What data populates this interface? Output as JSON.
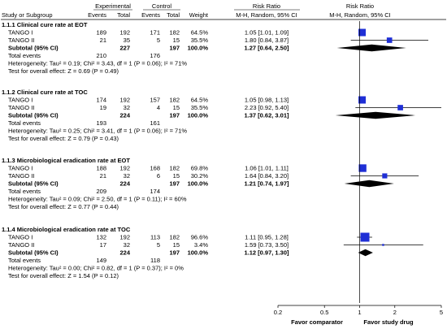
{
  "headers": {
    "experimental": "Experimental",
    "control": "Control",
    "risk_ratio": "Risk Ratio",
    "study": "Study or Subgroup",
    "events_e": "Events",
    "total_e": "Total",
    "events_c": "Events",
    "total_c": "Total",
    "weight": "Weight",
    "method_text": "M-H, Random, 95% CI",
    "method_plot": "M-H, Random, 95% CI"
  },
  "colors": {
    "study_box": "#1f2fd6",
    "diamond": "#000000",
    "rule": "#000000"
  },
  "footer": {
    "favor_left": "Favor comparator",
    "favor_right": "Favor study drug"
  },
  "chart_data": {
    "type": "forest",
    "scale": "log",
    "xlim": [
      0.2,
      5
    ],
    "reference_line": 1,
    "ticks": [
      0.2,
      0.5,
      1,
      2,
      5
    ],
    "tick_labels": [
      "0.2",
      "0.5",
      "1",
      "2",
      "5"
    ],
    "subgroups": [
      {
        "title": "1.1.1 Clinical cure rate at EOT",
        "studies": [
          {
            "name": "TANGO I",
            "events_e": "189",
            "total_e": "192",
            "events_c": "171",
            "total_c": "182",
            "weight": "64.5%",
            "ci_text": "1.05 [1.01, 1.09]",
            "rr": 1.05,
            "lo": 1.01,
            "hi": 1.09,
            "w": 64.5
          },
          {
            "name": "TANGO II",
            "events_e": "21",
            "total_e": "35",
            "events_c": "5",
            "total_c": "15",
            "weight": "35.5%",
            "ci_text": "1.80 [0.84, 3.87]",
            "rr": 1.8,
            "lo": 0.84,
            "hi": 3.87,
            "w": 35.5
          }
        ],
        "subtotal": {
          "label": "Subtotal (95% CI)",
          "total_e": "227",
          "total_c": "197",
          "weight": "100.0%",
          "ci_text": "1.27 [0.64, 2.50]",
          "rr": 1.27,
          "lo": 0.64,
          "hi": 2.5
        },
        "total_events": {
          "label": "Total events",
          "e": "210",
          "c": "176"
        },
        "heterogeneity": "Heterogeneity: Tau² = 0.19; Chi² = 3.43, df = 1 (P = 0.06); I² = 71%",
        "overall": "Test for overall effect: Z = 0.69 (P = 0.49)"
      },
      {
        "title": "1.1.2 Clinical cure rate at TOC",
        "studies": [
          {
            "name": "TANGO I",
            "events_e": "174",
            "total_e": "192",
            "events_c": "157",
            "total_c": "182",
            "weight": "64.5%",
            "ci_text": "1.05 [0.98, 1.13]",
            "rr": 1.05,
            "lo": 0.98,
            "hi": 1.13,
            "w": 64.5
          },
          {
            "name": "TANGO II",
            "events_e": "19",
            "total_e": "32",
            "events_c": "4",
            "total_c": "15",
            "weight": "35.5%",
            "ci_text": "2.23 [0.92, 5.40]",
            "rr": 2.23,
            "lo": 0.92,
            "hi": 5.4,
            "w": 35.5
          }
        ],
        "subtotal": {
          "label": "Subtotal (95% CI)",
          "total_e": "224",
          "total_c": "197",
          "weight": "100.0%",
          "ci_text": "1.37 [0.62, 3.01]",
          "rr": 1.37,
          "lo": 0.62,
          "hi": 3.01
        },
        "total_events": {
          "label": "Total events",
          "e": "193",
          "c": "161"
        },
        "heterogeneity": "Heterogeneity: Tau² = 0.25; Chi² = 3.41, df = 1 (P = 0.06); I² = 71%",
        "overall": "Test for overall effect: Z = 0.79 (P = 0.43)"
      },
      {
        "title": "1.1.3 Microbiological eradication rate at EOT",
        "studies": [
          {
            "name": "TANGO I",
            "events_e": "188",
            "total_e": "192",
            "events_c": "168",
            "total_c": "182",
            "weight": "69.8%",
            "ci_text": "1.06 [1.01, 1.11]",
            "rr": 1.06,
            "lo": 1.01,
            "hi": 1.11,
            "w": 69.8
          },
          {
            "name": "TANGO II",
            "events_e": "21",
            "total_e": "32",
            "events_c": "6",
            "total_c": "15",
            "weight": "30.2%",
            "ci_text": "1.64 [0.84, 3.20]",
            "rr": 1.64,
            "lo": 0.84,
            "hi": 3.2,
            "w": 30.2
          }
        ],
        "subtotal": {
          "label": "Subtotal (95% CI)",
          "total_e": "224",
          "total_c": "197",
          "weight": "100.0%",
          "ci_text": "1.21 [0.74, 1.97]",
          "rr": 1.21,
          "lo": 0.74,
          "hi": 1.97
        },
        "total_events": {
          "label": "Total events",
          "e": "209",
          "c": "174"
        },
        "heterogeneity": "Heterogeneity: Tau² = 0.09; Chi² = 2.50, df = 1 (P = 0.11); I² = 60%",
        "overall": "Test for overall effect: Z = 0.77 (P = 0.44)"
      },
      {
        "title": "1.1.4 Microbiological eradication rate at TOC",
        "studies": [
          {
            "name": "TANGO I",
            "events_e": "132",
            "total_e": "192",
            "events_c": "113",
            "total_c": "182",
            "weight": "96.6%",
            "ci_text": "1.11 [0.95, 1.28]",
            "rr": 1.11,
            "lo": 0.95,
            "hi": 1.28,
            "w": 96.6
          },
          {
            "name": "TANGO II",
            "events_e": "17",
            "total_e": "32",
            "events_c": "5",
            "total_c": "15",
            "weight": "3.4%",
            "ci_text": "1.59 [0.73, 3.50]",
            "rr": 1.59,
            "lo": 0.73,
            "hi": 3.5,
            "w": 3.4
          }
        ],
        "subtotal": {
          "label": "Subtotal (95% CI)",
          "total_e": "224",
          "total_c": "197",
          "weight": "100.0%",
          "ci_text": "1.12 [0.97, 1.30]",
          "rr": 1.12,
          "lo": 0.97,
          "hi": 1.3
        },
        "total_events": {
          "label": "Total events",
          "e": "149",
          "c": "118"
        },
        "heterogeneity": "Heterogeneity: Tau² = 0.00; Chi² = 0.82, df = 1 (P = 0.37); I² = 0%",
        "overall": "Test for overall effect: Z = 1.54 (P = 0.12)"
      }
    ]
  }
}
